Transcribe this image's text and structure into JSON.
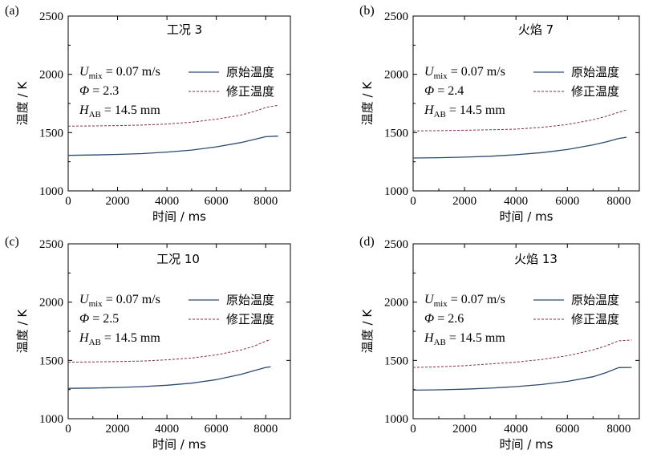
{
  "colors": {
    "original": "#2c4a6e",
    "corrected": "#8a2a55"
  },
  "chart_data": [
    {
      "type": "line",
      "panel_label": "(a)",
      "title": "工况 3",
      "xlabel": "时间 / ms",
      "ylabel": "温度 / K",
      "xlim": [
        0,
        9000
      ],
      "ylim": [
        1000,
        2500
      ],
      "xticks": [
        "0",
        "2000",
        "4000",
        "6000",
        "8000"
      ],
      "yticks": [
        "1000",
        "1500",
        "2000",
        "2500"
      ],
      "params": {
        "umix_value": "= 0.07 m/s",
        "phi_value": "= 2.3",
        "hab_value": "= 14.5 mm"
      },
      "legend": [
        "原始温度",
        "修正温度"
      ],
      "legend_position": "top-right",
      "grid": false,
      "series": [
        {
          "name": "原始温度",
          "style": "solid",
          "x": [
            0,
            1000,
            2000,
            3000,
            4000,
            5000,
            6000,
            7000,
            7500,
            8000,
            8500
          ],
          "y": [
            1305,
            1308,
            1313,
            1320,
            1333,
            1350,
            1378,
            1415,
            1440,
            1465,
            1470
          ]
        },
        {
          "name": "修正温度",
          "style": "dashed",
          "x": [
            0,
            1000,
            2000,
            3000,
            4000,
            5000,
            6000,
            7000,
            7500,
            8000,
            8500
          ],
          "y": [
            1555,
            1557,
            1560,
            1565,
            1573,
            1590,
            1615,
            1650,
            1680,
            1715,
            1735
          ]
        }
      ]
    },
    {
      "type": "line",
      "panel_label": "(b)",
      "title": "火焰 7",
      "xlabel": "时间 / ms",
      "ylabel": "温度 / K",
      "xlim": [
        0,
        8800
      ],
      "ylim": [
        1000,
        2500
      ],
      "xticks": [
        "0",
        "2000",
        "4000",
        "6000",
        "8000"
      ],
      "yticks": [
        "1000",
        "1500",
        "2000",
        "2500"
      ],
      "params": {
        "umix_value": "= 0.07 m/s",
        "phi_value": "= 2.4",
        "hab_value": "= 14.5 mm"
      },
      "legend": [
        "原始温度",
        "修正温度"
      ],
      "legend_position": "top-right",
      "grid": false,
      "series": [
        {
          "name": "原始温度",
          "style": "solid",
          "x": [
            0,
            1000,
            2000,
            3000,
            4000,
            5000,
            6000,
            7000,
            7500,
            8000,
            8300
          ],
          "y": [
            1282,
            1285,
            1290,
            1297,
            1310,
            1328,
            1355,
            1395,
            1420,
            1450,
            1460
          ]
        },
        {
          "name": "修正温度",
          "style": "dashed",
          "x": [
            0,
            1000,
            2000,
            3000,
            4000,
            5000,
            6000,
            7000,
            7500,
            8000,
            8300
          ],
          "y": [
            1515,
            1517,
            1520,
            1524,
            1530,
            1545,
            1570,
            1610,
            1640,
            1675,
            1695
          ]
        }
      ]
    },
    {
      "type": "line",
      "panel_label": "(c)",
      "title": "工况 10",
      "xlabel": "时间 / ms",
      "ylabel": "温度 / K",
      "xlim": [
        0,
        9000
      ],
      "ylim": [
        1000,
        2500
      ],
      "xticks": [
        "0",
        "2000",
        "4000",
        "6000",
        "8000"
      ],
      "yticks": [
        "1000",
        "1500",
        "2000",
        "2500"
      ],
      "params": {
        "umix_value": "= 0.07 m/s",
        "phi_value": "= 2.5",
        "hab_value": "= 14.5 mm"
      },
      "legend": [
        "原始温度",
        "修正温度"
      ],
      "legend_position": "top-right",
      "grid": false,
      "series": [
        {
          "name": "原始温度",
          "style": "solid",
          "x": [
            0,
            1000,
            2000,
            3000,
            4000,
            5000,
            6000,
            7000,
            7500,
            8000,
            8200
          ],
          "y": [
            1260,
            1263,
            1268,
            1275,
            1287,
            1305,
            1335,
            1380,
            1410,
            1440,
            1445
          ]
        },
        {
          "name": "修正温度",
          "style": "dashed",
          "x": [
            0,
            1000,
            2000,
            3000,
            4000,
            5000,
            6000,
            7000,
            7500,
            8000,
            8200
          ],
          "y": [
            1485,
            1487,
            1490,
            1495,
            1505,
            1520,
            1548,
            1590,
            1620,
            1665,
            1680
          ]
        }
      ]
    },
    {
      "type": "line",
      "panel_label": "(d)",
      "title": "火焰 13",
      "xlabel": "时间 / ms",
      "ylabel": "温度 / K",
      "xlim": [
        0,
        8800
      ],
      "ylim": [
        1000,
        2500
      ],
      "xticks": [
        "0",
        "2000",
        "4000",
        "6000",
        "8000"
      ],
      "yticks": [
        "1000",
        "1500",
        "2000",
        "2500"
      ],
      "params": {
        "umix_value": "= 0.07 m/s",
        "phi_value": "= 2.6",
        "hab_value": "= 14.5 mm"
      },
      "legend": [
        "原始温度",
        "修正温度"
      ],
      "legend_position": "top-right",
      "grid": false,
      "series": [
        {
          "name": "原始温度",
          "style": "solid",
          "x": [
            0,
            1000,
            2000,
            3000,
            4000,
            5000,
            6000,
            7000,
            7500,
            8000,
            8500
          ],
          "y": [
            1245,
            1248,
            1253,
            1262,
            1275,
            1293,
            1320,
            1360,
            1395,
            1438,
            1440
          ]
        },
        {
          "name": "修正温度",
          "style": "dashed",
          "x": [
            0,
            1000,
            2000,
            3000,
            4000,
            5000,
            6000,
            7000,
            7500,
            8000,
            8500
          ],
          "y": [
            1440,
            1445,
            1455,
            1470,
            1485,
            1508,
            1540,
            1590,
            1625,
            1668,
            1675
          ]
        }
      ]
    }
  ]
}
